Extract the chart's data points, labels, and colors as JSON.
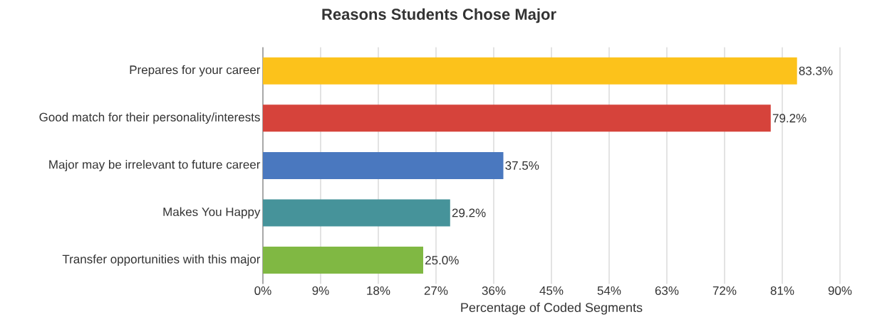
{
  "chart_data": {
    "type": "bar",
    "orientation": "horizontal",
    "title": "Reasons Students Chose Major",
    "xlabel": "Percentage of Coded Segments",
    "categories": [
      "Prepares for your career",
      "Good match for their personality/interests",
      "Major may be irrelevant to future  career",
      "Makes You Happy",
      "Transfer opportunities with this major"
    ],
    "values": [
      83.3,
      79.2,
      37.5,
      29.2,
      25.0
    ],
    "value_labels": [
      "83.3%",
      "79.2%",
      "37.5%",
      "29.2%",
      "25.0%"
    ],
    "colors": [
      "#fcc21b",
      "#d6433b",
      "#4a78bf",
      "#46939a",
      "#80b843"
    ],
    "xlim": [
      0,
      90
    ],
    "xticks": [
      {
        "value": 0,
        "label": "0%"
      },
      {
        "value": 9,
        "label": "9%"
      },
      {
        "value": 18,
        "label": "18%"
      },
      {
        "value": 27,
        "label": "27%"
      },
      {
        "value": 36,
        "label": "36%"
      },
      {
        "value": 45,
        "label": "45%"
      },
      {
        "value": 54,
        "label": "54%"
      },
      {
        "value": 63,
        "label": "63%"
      },
      {
        "value": 72,
        "label": "72%"
      },
      {
        "value": 81,
        "label": "81%"
      },
      {
        "value": 90,
        "label": "90%"
      }
    ],
    "grid": "x"
  }
}
